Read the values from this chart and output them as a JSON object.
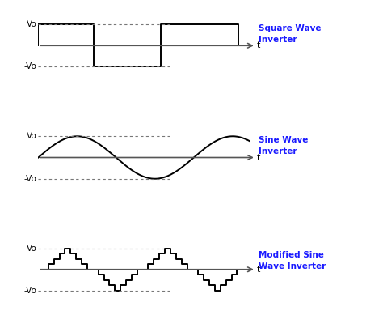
{
  "fig_width": 4.74,
  "fig_height": 3.89,
  "dpi": 100,
  "background_color": "#ffffff",
  "wave_color": "#000000",
  "axis_color": "#555555",
  "label_color": "#1a1aff",
  "dashed_color": "#777777",
  "label_fontsize": 7.5,
  "axis_label_fontsize": 8,
  "subplot_titles": [
    "Square Wave\nInverter",
    "Sine Wave\nInverter",
    "Modified Sine\nWave Inverter"
  ],
  "vo_label": "Vo",
  "neg_vo_label": "-Vo",
  "t_label": "t"
}
